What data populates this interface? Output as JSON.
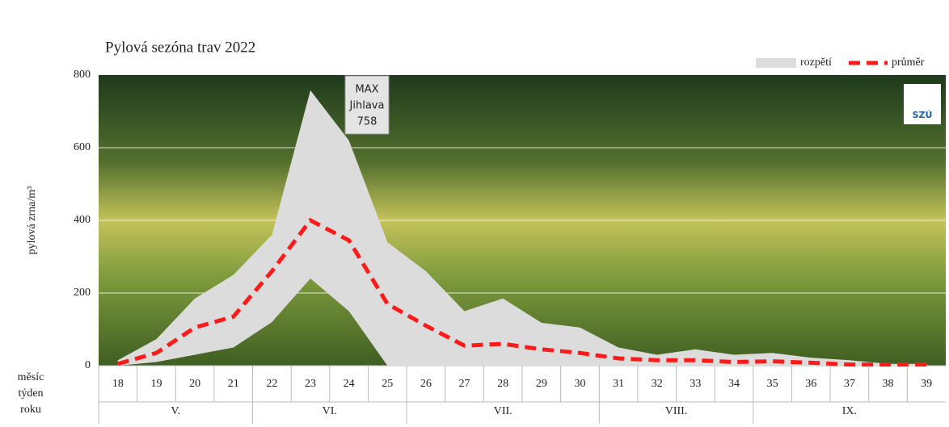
{
  "chart_data": {
    "type": "range-line",
    "title": "Pylová sezóna trav 2022",
    "y_label": "pylová zrna/m³",
    "row_labels": [
      "měsíc",
      "týden",
      "roku"
    ],
    "annotation": [
      "MAX",
      "Jihlava",
      "758"
    ],
    "logo": "SZÚ",
    "categories": [
      18,
      19,
      20,
      21,
      22,
      23,
      24,
      25,
      26,
      27,
      28,
      29,
      30,
      31,
      32,
      33,
      34,
      35,
      36,
      37,
      38,
      39
    ],
    "months": [
      {
        "label": "V.",
        "first": 18,
        "last": 21
      },
      {
        "label": "VI.",
        "first": 22,
        "last": 25
      },
      {
        "label": "VII.",
        "first": 26,
        "last": 30
      },
      {
        "label": "VIII.",
        "first": 31,
        "last": 34
      },
      {
        "label": "IX.",
        "first": 35,
        "last": 39
      }
    ],
    "series": [
      {
        "name": "rozpětí",
        "color": "#dcdcdc",
        "low": [
          0,
          10,
          30,
          50,
          120,
          240,
          150,
          0,
          0,
          0,
          0,
          0,
          0,
          0,
          0,
          0,
          0,
          0,
          0,
          0,
          0,
          0
        ],
        "high": [
          15,
          73,
          185,
          250,
          360,
          758,
          620,
          340,
          260,
          150,
          185,
          118,
          105,
          50,
          30,
          45,
          30,
          35,
          22,
          15,
          5,
          5
        ]
      },
      {
        "name": "průměr",
        "color": "#ff1a1a",
        "values": [
          5,
          35,
          105,
          135,
          260,
          400,
          345,
          170,
          110,
          55,
          60,
          45,
          35,
          20,
          15,
          15,
          10,
          12,
          8,
          3,
          3,
          3
        ]
      }
    ],
    "ylim": [
      0,
      800
    ],
    "yticks": [
      0,
      200,
      400,
      600,
      800
    ],
    "grid": true,
    "legend": "top-right"
  }
}
